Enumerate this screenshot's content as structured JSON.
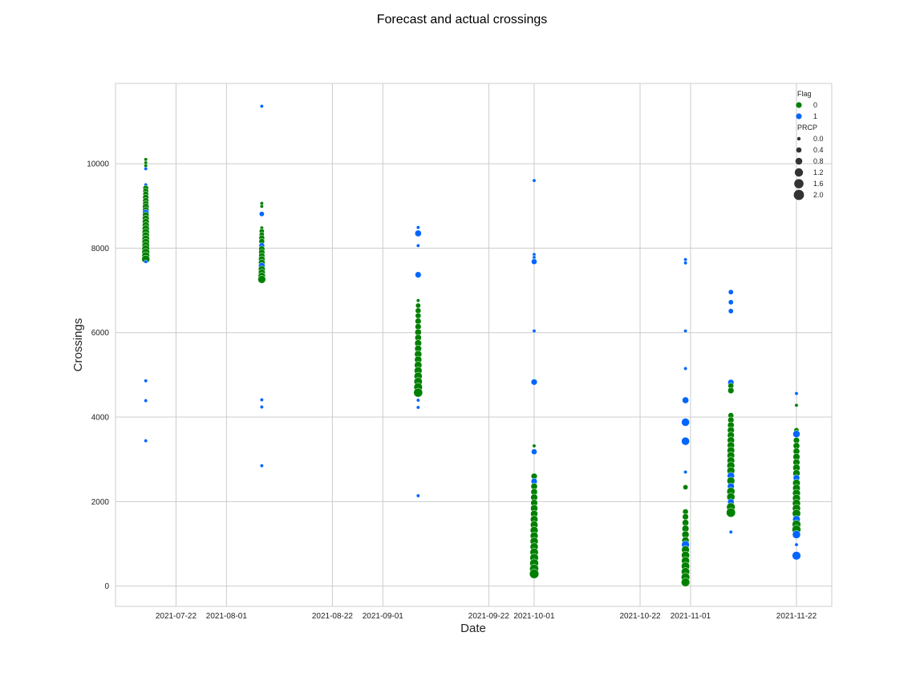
{
  "chart_data": {
    "type": "scatter",
    "title": "Forecast and actual crossings",
    "xlabel": "Date",
    "ylabel": "Crossings",
    "xlim": [
      "2021-07-10",
      "2021-11-29"
    ],
    "ylim": [
      -480,
      11900
    ],
    "xticks": [
      "2021-07-22",
      "2021-08-01",
      "2021-08-22",
      "2021-09-01",
      "2021-09-22",
      "2021-10-01",
      "2021-10-22",
      "2021-11-01",
      "2021-11-22"
    ],
    "yticks": [
      "0",
      "2000",
      "4000",
      "6000",
      "8000",
      "10000"
    ],
    "grid": true,
    "legend_position": "top-right",
    "colors": {
      "0": "#008000",
      "1": "#0066ff"
    },
    "legend": {
      "hue_title": "Flag",
      "hue_entries": [
        "0",
        "1"
      ],
      "size_title": "PRCP",
      "size_entries": [
        "0.0",
        "0.4",
        "0.8",
        "1.2",
        "1.6",
        "2.0"
      ]
    },
    "groups": [
      {
        "date": "2021-07-16",
        "points": [
          {
            "y": 10100,
            "flag": 0,
            "prcp": 0.0
          },
          {
            "y": 10020,
            "flag": 0,
            "prcp": 0.0
          },
          {
            "y": 9950,
            "flag": 0,
            "prcp": 0.0
          },
          {
            "y": 9880,
            "flag": 1,
            "prcp": 0.0
          },
          {
            "y": 9500,
            "flag": 1,
            "prcp": 0.0
          },
          {
            "y": 9420,
            "flag": 0,
            "prcp": 0.2
          },
          {
            "y": 9350,
            "flag": 0,
            "prcp": 0.2
          },
          {
            "y": 9280,
            "flag": 0,
            "prcp": 0.2
          },
          {
            "y": 9200,
            "flag": 0,
            "prcp": 0.3
          },
          {
            "y": 9120,
            "flag": 0,
            "prcp": 0.3
          },
          {
            "y": 9050,
            "flag": 0,
            "prcp": 0.3
          },
          {
            "y": 8980,
            "flag": 0,
            "prcp": 0.4
          },
          {
            "y": 8900,
            "flag": 0,
            "prcp": 0.4
          },
          {
            "y": 8840,
            "flag": 1,
            "prcp": 0.4
          },
          {
            "y": 8780,
            "flag": 0,
            "prcp": 0.4
          },
          {
            "y": 8700,
            "flag": 0,
            "prcp": 0.5
          },
          {
            "y": 8620,
            "flag": 0,
            "prcp": 0.5
          },
          {
            "y": 8540,
            "flag": 0,
            "prcp": 0.5
          },
          {
            "y": 8460,
            "flag": 0,
            "prcp": 0.6
          },
          {
            "y": 8380,
            "flag": 0,
            "prcp": 0.6
          },
          {
            "y": 8300,
            "flag": 0,
            "prcp": 0.6
          },
          {
            "y": 8220,
            "flag": 0,
            "prcp": 0.7
          },
          {
            "y": 8140,
            "flag": 0,
            "prcp": 0.7
          },
          {
            "y": 8060,
            "flag": 0,
            "prcp": 0.7
          },
          {
            "y": 7980,
            "flag": 0,
            "prcp": 0.8
          },
          {
            "y": 7900,
            "flag": 0,
            "prcp": 0.8
          },
          {
            "y": 7820,
            "flag": 0,
            "prcp": 0.8
          },
          {
            "y": 7740,
            "flag": 0,
            "prcp": 0.9
          },
          {
            "y": 7680,
            "flag": 1,
            "prcp": 0.0
          },
          {
            "y": 4860,
            "flag": 1,
            "prcp": 0.0
          },
          {
            "y": 4390,
            "flag": 1,
            "prcp": 0.0
          },
          {
            "y": 3440,
            "flag": 1,
            "prcp": 0.0
          }
        ]
      },
      {
        "date": "2021-08-08",
        "points": [
          {
            "y": 11360,
            "flag": 1,
            "prcp": 0.0
          },
          {
            "y": 9060,
            "flag": 0,
            "prcp": 0.0
          },
          {
            "y": 8990,
            "flag": 0,
            "prcp": 0.0
          },
          {
            "y": 8810,
            "flag": 1,
            "prcp": 0.1
          },
          {
            "y": 8480,
            "flag": 0,
            "prcp": 0.0
          },
          {
            "y": 8400,
            "flag": 0,
            "prcp": 0.1
          },
          {
            "y": 8320,
            "flag": 0,
            "prcp": 0.1
          },
          {
            "y": 8240,
            "flag": 0,
            "prcp": 0.2
          },
          {
            "y": 8160,
            "flag": 0,
            "prcp": 0.2
          },
          {
            "y": 8060,
            "flag": 1,
            "prcp": 0.2
          },
          {
            "y": 7980,
            "flag": 0,
            "prcp": 0.3
          },
          {
            "y": 7900,
            "flag": 0,
            "prcp": 0.3
          },
          {
            "y": 7820,
            "flag": 0,
            "prcp": 0.3
          },
          {
            "y": 7740,
            "flag": 0,
            "prcp": 0.4
          },
          {
            "y": 7660,
            "flag": 0,
            "prcp": 0.4
          },
          {
            "y": 7580,
            "flag": 1,
            "prcp": 0.4
          },
          {
            "y": 7500,
            "flag": 0,
            "prcp": 0.5
          },
          {
            "y": 7420,
            "flag": 0,
            "prcp": 0.5
          },
          {
            "y": 7340,
            "flag": 0,
            "prcp": 0.6
          },
          {
            "y": 7260,
            "flag": 0,
            "prcp": 0.8
          },
          {
            "y": 4410,
            "flag": 1,
            "prcp": 0.0
          },
          {
            "y": 4240,
            "flag": 1,
            "prcp": 0.0
          },
          {
            "y": 2850,
            "flag": 1,
            "prcp": 0.0
          }
        ]
      },
      {
        "date": "2021-09-08",
        "points": [
          {
            "y": 8490,
            "flag": 1,
            "prcp": 0.0
          },
          {
            "y": 8350,
            "flag": 1,
            "prcp": 0.4
          },
          {
            "y": 8060,
            "flag": 1,
            "prcp": 0.0
          },
          {
            "y": 7370,
            "flag": 1,
            "prcp": 0.3
          },
          {
            "y": 6760,
            "flag": 0,
            "prcp": 0.0
          },
          {
            "y": 6640,
            "flag": 0,
            "prcp": 0.1
          },
          {
            "y": 6520,
            "flag": 0,
            "prcp": 0.2
          },
          {
            "y": 6400,
            "flag": 0,
            "prcp": 0.2
          },
          {
            "y": 6270,
            "flag": 0,
            "prcp": 0.3
          },
          {
            "y": 6140,
            "flag": 0,
            "prcp": 0.3
          },
          {
            "y": 6010,
            "flag": 0,
            "prcp": 0.4
          },
          {
            "y": 5880,
            "flag": 0,
            "prcp": 0.4
          },
          {
            "y": 5750,
            "flag": 0,
            "prcp": 0.5
          },
          {
            "y": 5620,
            "flag": 0,
            "prcp": 0.5
          },
          {
            "y": 5490,
            "flag": 0,
            "prcp": 0.6
          },
          {
            "y": 5360,
            "flag": 0,
            "prcp": 0.6
          },
          {
            "y": 5230,
            "flag": 0,
            "prcp": 0.7
          },
          {
            "y": 5100,
            "flag": 0,
            "prcp": 0.8
          },
          {
            "y": 4970,
            "flag": 0,
            "prcp": 0.9
          },
          {
            "y": 4840,
            "flag": 0,
            "prcp": 1.0
          },
          {
            "y": 4710,
            "flag": 0,
            "prcp": 1.1
          },
          {
            "y": 4580,
            "flag": 0,
            "prcp": 1.3
          },
          {
            "y": 4400,
            "flag": 1,
            "prcp": 0.0
          },
          {
            "y": 4230,
            "flag": 1,
            "prcp": 0.0
          },
          {
            "y": 2140,
            "flag": 1,
            "prcp": 0.0
          }
        ]
      },
      {
        "date": "2021-10-01",
        "points": [
          {
            "y": 9600,
            "flag": 1,
            "prcp": 0.0
          },
          {
            "y": 7850,
            "flag": 1,
            "prcp": 0.0
          },
          {
            "y": 7780,
            "flag": 1,
            "prcp": 0.0
          },
          {
            "y": 7680,
            "flag": 1,
            "prcp": 0.2
          },
          {
            "y": 6040,
            "flag": 1,
            "prcp": 0.0
          },
          {
            "y": 4830,
            "flag": 1,
            "prcp": 0.3
          },
          {
            "y": 3320,
            "flag": 0,
            "prcp": 0.0
          },
          {
            "y": 3180,
            "flag": 1,
            "prcp": 0.2
          },
          {
            "y": 2600,
            "flag": 0,
            "prcp": 0.3
          },
          {
            "y": 2480,
            "flag": 1,
            "prcp": 0.3
          },
          {
            "y": 2360,
            "flag": 0,
            "prcp": 0.4
          },
          {
            "y": 2230,
            "flag": 0,
            "prcp": 0.4
          },
          {
            "y": 2100,
            "flag": 0,
            "prcp": 0.5
          },
          {
            "y": 1970,
            "flag": 0,
            "prcp": 0.5
          },
          {
            "y": 1840,
            "flag": 0,
            "prcp": 0.6
          },
          {
            "y": 1710,
            "flag": 0,
            "prcp": 0.6
          },
          {
            "y": 1580,
            "flag": 0,
            "prcp": 0.7
          },
          {
            "y": 1450,
            "flag": 0,
            "prcp": 0.7
          },
          {
            "y": 1320,
            "flag": 0,
            "prcp": 0.8
          },
          {
            "y": 1190,
            "flag": 0,
            "prcp": 0.8
          },
          {
            "y": 1060,
            "flag": 0,
            "prcp": 0.9
          },
          {
            "y": 930,
            "flag": 0,
            "prcp": 0.9
          },
          {
            "y": 800,
            "flag": 0,
            "prcp": 1.0
          },
          {
            "y": 670,
            "flag": 0,
            "prcp": 1.1
          },
          {
            "y": 540,
            "flag": 0,
            "prcp": 1.2
          },
          {
            "y": 410,
            "flag": 0,
            "prcp": 1.3
          },
          {
            "y": 290,
            "flag": 0,
            "prcp": 1.5
          }
        ]
      },
      {
        "date": "2021-10-31",
        "points": [
          {
            "y": 7730,
            "flag": 1,
            "prcp": 0.0
          },
          {
            "y": 7650,
            "flag": 1,
            "prcp": 0.0
          },
          {
            "y": 6040,
            "flag": 1,
            "prcp": 0.0
          },
          {
            "y": 5150,
            "flag": 1,
            "prcp": 0.0
          },
          {
            "y": 4400,
            "flag": 1,
            "prcp": 0.4
          },
          {
            "y": 3880,
            "flag": 1,
            "prcp": 0.9
          },
          {
            "y": 3430,
            "flag": 1,
            "prcp": 0.9
          },
          {
            "y": 2700,
            "flag": 1,
            "prcp": 0.0
          },
          {
            "y": 2340,
            "flag": 0,
            "prcp": 0.1
          },
          {
            "y": 1760,
            "flag": 0,
            "prcp": 0.2
          },
          {
            "y": 1640,
            "flag": 0,
            "prcp": 0.3
          },
          {
            "y": 1500,
            "flag": 0,
            "prcp": 0.4
          },
          {
            "y": 1360,
            "flag": 0,
            "prcp": 0.5
          },
          {
            "y": 1220,
            "flag": 0,
            "prcp": 0.6
          },
          {
            "y": 1080,
            "flag": 0,
            "prcp": 0.6
          },
          {
            "y": 980,
            "flag": 1,
            "prcp": 0.8
          },
          {
            "y": 860,
            "flag": 0,
            "prcp": 0.8
          },
          {
            "y": 730,
            "flag": 0,
            "prcp": 0.9
          },
          {
            "y": 600,
            "flag": 0,
            "prcp": 0.9
          },
          {
            "y": 470,
            "flag": 0,
            "prcp": 1.0
          },
          {
            "y": 340,
            "flag": 0,
            "prcp": 1.0
          },
          {
            "y": 210,
            "flag": 0,
            "prcp": 1.1
          },
          {
            "y": 90,
            "flag": 0,
            "prcp": 1.1
          }
        ]
      },
      {
        "date": "2021-11-09",
        "points": [
          {
            "y": 6960,
            "flag": 1,
            "prcp": 0.1
          },
          {
            "y": 6720,
            "flag": 1,
            "prcp": 0.1
          },
          {
            "y": 6510,
            "flag": 1,
            "prcp": 0.1
          },
          {
            "y": 4820,
            "flag": 1,
            "prcp": 0.3
          },
          {
            "y": 4740,
            "flag": 0,
            "prcp": 0.2
          },
          {
            "y": 4630,
            "flag": 0,
            "prcp": 0.3
          },
          {
            "y": 4040,
            "flag": 0,
            "prcp": 0.2
          },
          {
            "y": 3930,
            "flag": 0,
            "prcp": 0.3
          },
          {
            "y": 3810,
            "flag": 0,
            "prcp": 0.4
          },
          {
            "y": 3690,
            "flag": 0,
            "prcp": 0.5
          },
          {
            "y": 3570,
            "flag": 0,
            "prcp": 0.5
          },
          {
            "y": 3450,
            "flag": 0,
            "prcp": 0.6
          },
          {
            "y": 3330,
            "flag": 0,
            "prcp": 0.6
          },
          {
            "y": 3210,
            "flag": 0,
            "prcp": 0.7
          },
          {
            "y": 3090,
            "flag": 0,
            "prcp": 0.7
          },
          {
            "y": 2970,
            "flag": 0,
            "prcp": 0.7
          },
          {
            "y": 2850,
            "flag": 0,
            "prcp": 0.8
          },
          {
            "y": 2730,
            "flag": 0,
            "prcp": 0.8
          },
          {
            "y": 2610,
            "flag": 1,
            "prcp": 0.6
          },
          {
            "y": 2490,
            "flag": 0,
            "prcp": 0.8
          },
          {
            "y": 2360,
            "flag": 1,
            "prcp": 0.5
          },
          {
            "y": 2240,
            "flag": 0,
            "prcp": 0.9
          },
          {
            "y": 2110,
            "flag": 0,
            "prcp": 0.9
          },
          {
            "y": 1990,
            "flag": 1,
            "prcp": 0.4
          },
          {
            "y": 1870,
            "flag": 0,
            "prcp": 1.1
          },
          {
            "y": 1740,
            "flag": 0,
            "prcp": 1.4
          },
          {
            "y": 1280,
            "flag": 1,
            "prcp": 0.0
          }
        ]
      },
      {
        "date": "2021-11-22",
        "points": [
          {
            "y": 4560,
            "flag": 1,
            "prcp": 0.0
          },
          {
            "y": 4280,
            "flag": 0,
            "prcp": 0.0
          },
          {
            "y": 3690,
            "flag": 0,
            "prcp": 0.1
          },
          {
            "y": 3600,
            "flag": 1,
            "prcp": 0.6
          },
          {
            "y": 3450,
            "flag": 0,
            "prcp": 0.3
          },
          {
            "y": 3320,
            "flag": 0,
            "prcp": 0.4
          },
          {
            "y": 3190,
            "flag": 0,
            "prcp": 0.4
          },
          {
            "y": 3060,
            "flag": 0,
            "prcp": 0.5
          },
          {
            "y": 2930,
            "flag": 0,
            "prcp": 0.5
          },
          {
            "y": 2800,
            "flag": 0,
            "prcp": 0.6
          },
          {
            "y": 2670,
            "flag": 0,
            "prcp": 0.6
          },
          {
            "y": 2560,
            "flag": 1,
            "prcp": 0.4
          },
          {
            "y": 2440,
            "flag": 0,
            "prcp": 0.7
          },
          {
            "y": 2320,
            "flag": 0,
            "prcp": 0.7
          },
          {
            "y": 2200,
            "flag": 0,
            "prcp": 0.8
          },
          {
            "y": 2080,
            "flag": 0,
            "prcp": 0.8
          },
          {
            "y": 1960,
            "flag": 0,
            "prcp": 0.9
          },
          {
            "y": 1840,
            "flag": 0,
            "prcp": 0.9
          },
          {
            "y": 1720,
            "flag": 0,
            "prcp": 1.0
          },
          {
            "y": 1580,
            "flag": 1,
            "prcp": 0.7
          },
          {
            "y": 1460,
            "flag": 0,
            "prcp": 1.1
          },
          {
            "y": 1340,
            "flag": 0,
            "prcp": 1.2
          },
          {
            "y": 1220,
            "flag": 1,
            "prcp": 0.9
          },
          {
            "y": 980,
            "flag": 1,
            "prcp": 0.0
          },
          {
            "y": 720,
            "flag": 1,
            "prcp": 1.1
          }
        ]
      }
    ]
  }
}
